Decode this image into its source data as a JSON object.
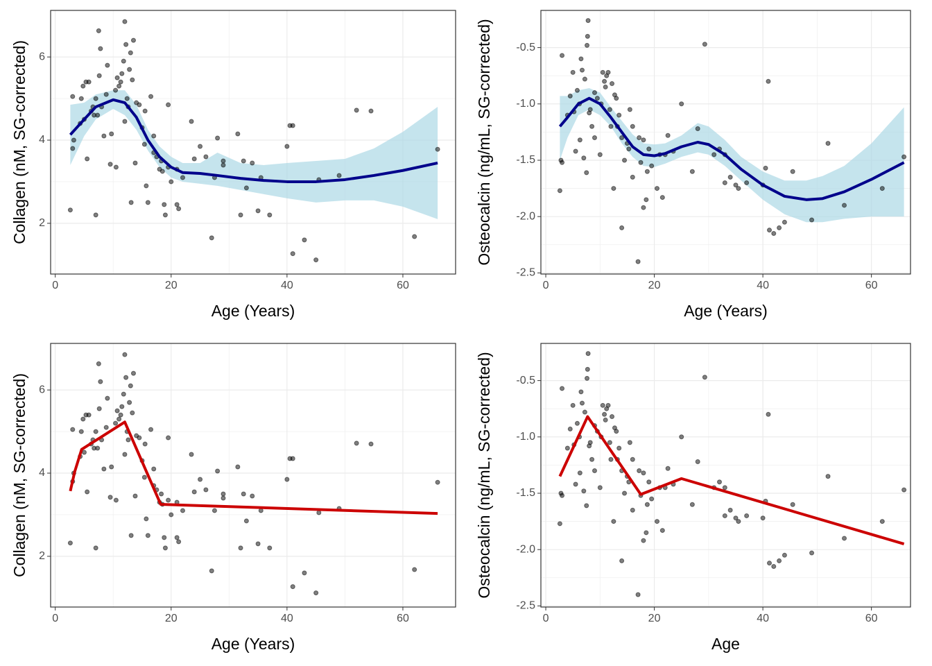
{
  "chart_data": [
    {
      "type": "scatter",
      "x_label": "Age (Years)",
      "y_label": "Collagen (nM, SG-corrected)",
      "xlim": [
        -0.8,
        69.1
      ],
      "ylim": [
        0.78,
        7.12
      ],
      "xticks": [
        0,
        20,
        40,
        60
      ],
      "yticks": [
        2,
        4,
        6
      ],
      "grid": true,
      "series": [
        {
          "kind": "points",
          "color": "#000000",
          "opacity": 0.5,
          "x": [
            2.6,
            3,
            3,
            3.2,
            4.3,
            4.5,
            4.8,
            5,
            5.3,
            5.5,
            5.8,
            6.2,
            6.5,
            6.7,
            7,
            7,
            7.3,
            7.5,
            7.6,
            7.8,
            8,
            8.4,
            8.8,
            9,
            9.5,
            9.7,
            10.4,
            10.5,
            10.7,
            11,
            11.3,
            11.5,
            11.8,
            12,
            12,
            12.2,
            12.4,
            12.6,
            12.8,
            13,
            13.1,
            13.3,
            13.5,
            13.8,
            14,
            14.5,
            15,
            15.4,
            15.5,
            15.7,
            16,
            16.5,
            17,
            17,
            17.5,
            18,
            18.3,
            18.5,
            18.8,
            19,
            19.5,
            19.5,
            20,
            21,
            21,
            21.3,
            22,
            23.5,
            24,
            25,
            26,
            27,
            27.5,
            28,
            29,
            29,
            31.5,
            32,
            32.5,
            33,
            34,
            35,
            35.5,
            37,
            40,
            40.5,
            41,
            41,
            43,
            45,
            45.5,
            49,
            52,
            54.5,
            62,
            66
          ],
          "y": [
            2.32,
            3.8,
            5.05,
            4.0,
            4.4,
            5.0,
            5.3,
            4.5,
            5.4,
            3.55,
            5.4,
            4.7,
            4.8,
            4.6,
            5.0,
            2.2,
            4.6,
            6.63,
            5.55,
            6.2,
            4.8,
            4.1,
            5.1,
            5.8,
            3.42,
            4.15,
            5.2,
            3.35,
            5.5,
            5.3,
            5.4,
            5.6,
            5.9,
            6.85,
            4.45,
            6.3,
            5.0,
            4.8,
            5.7,
            6.1,
            2.5,
            5.45,
            6.4,
            3.45,
            4.9,
            4.85,
            4.3,
            3.9,
            4.7,
            2.9,
            2.5,
            5.05,
            3.7,
            4.1,
            3.6,
            3.3,
            3.5,
            3.25,
            2.45,
            2.2,
            4.85,
            3.35,
            3.0,
            2.45,
            3.3,
            2.35,
            3.1,
            4.45,
            3.55,
            3.85,
            3.6,
            1.65,
            3.1,
            4.05,
            3.4,
            3.5,
            4.15,
            2.2,
            3.5,
            2.85,
            3.45,
            2.3,
            3.1,
            2.2,
            3.85,
            4.35,
            4.35,
            1.27,
            1.6,
            1.12,
            3.05,
            3.15,
            4.72,
            4.7,
            1.68,
            3.78
          ]
        },
        {
          "kind": "smooth",
          "color": "#00008b",
          "fill": "#add8e6",
          "x": [
            2.6,
            5,
            7,
            10,
            12,
            14,
            16,
            18,
            20,
            22,
            25,
            28,
            32,
            36,
            40,
            45,
            50,
            55,
            60,
            66
          ],
          "y": [
            4.13,
            4.5,
            4.8,
            4.97,
            4.9,
            4.55,
            4.0,
            3.6,
            3.35,
            3.22,
            3.2,
            3.15,
            3.08,
            3.03,
            3.0,
            3.0,
            3.05,
            3.15,
            3.27,
            3.45
          ],
          "lower": [
            3.4,
            4.1,
            4.5,
            4.75,
            4.6,
            4.25,
            3.75,
            3.35,
            3.1,
            3.0,
            2.95,
            2.9,
            2.8,
            2.7,
            2.6,
            2.5,
            2.55,
            2.55,
            2.4,
            2.1
          ],
          "upper": [
            4.85,
            4.9,
            5.1,
            5.2,
            5.2,
            4.85,
            4.25,
            3.85,
            3.6,
            3.45,
            3.45,
            3.7,
            3.45,
            3.4,
            3.45,
            3.5,
            3.55,
            3.8,
            4.2,
            4.8
          ]
        }
      ]
    },
    {
      "type": "scatter",
      "x_label": "Age (Years)",
      "y_label": "Osteocalcin (ng/mL, SG-corrected)",
      "xlim": [
        -0.9,
        67.2
      ],
      "ylim": [
        -2.51,
        -0.17
      ],
      "xticks": [
        0,
        20,
        40,
        60
      ],
      "yticks": [
        -0.5,
        {
          "value": -1,
          "label": "-1.0"
        },
        -1.5,
        {
          "value": -2,
          "label": "-2.0"
        },
        -2.5
      ],
      "grid": true,
      "series": [
        {
          "kind": "points",
          "color": "#000000",
          "opacity": 0.5,
          "x": [
            2.6,
            2.8,
            3,
            3,
            4,
            4.5,
            5,
            5.2,
            5.5,
            5.8,
            6.2,
            6.3,
            6.5,
            6.7,
            7,
            7.2,
            7.5,
            7.6,
            7.7,
            7.8,
            8,
            8.2,
            8.5,
            9,
            9,
            9.5,
            10,
            10.2,
            10.5,
            10.8,
            11,
            11.2,
            11.5,
            11.8,
            12,
            12.2,
            12.5,
            12.7,
            13,
            13.2,
            13.5,
            14,
            14,
            14.5,
            15,
            15.3,
            15.5,
            16,
            16,
            17,
            17.2,
            17.5,
            18,
            18,
            18.5,
            18.7,
            19,
            19.5,
            20.5,
            21,
            21.5,
            22,
            22.5,
            23.5,
            25,
            27,
            28,
            29.3,
            31,
            32,
            33,
            33,
            34,
            35,
            35.5,
            37,
            40,
            40.5,
            41,
            41.2,
            42,
            43,
            44,
            45.5,
            49,
            52,
            55,
            62,
            66
          ],
          "y": [
            -1.77,
            -1.5,
            -1.52,
            -0.57,
            -1.1,
            -0.93,
            -0.72,
            -1.07,
            -1.42,
            -0.88,
            -1.0,
            -1.32,
            -0.6,
            -0.7,
            -1.48,
            -0.78,
            -1.61,
            -0.48,
            -0.4,
            -0.26,
            -1.08,
            -1.05,
            -1.2,
            -1.3,
            -0.9,
            -0.95,
            -1.45,
            -1.0,
            -0.72,
            -0.8,
            -0.85,
            -0.75,
            -0.72,
            -1.05,
            -1.2,
            -0.82,
            -1.75,
            -0.92,
            -0.95,
            -1.2,
            -1.1,
            -1.3,
            -2.1,
            -1.5,
            -1.35,
            -1.4,
            -1.05,
            -1.65,
            -1.2,
            -2.4,
            -1.3,
            -1.52,
            -1.32,
            -1.92,
            -1.85,
            -1.6,
            -1.4,
            -1.55,
            -1.75,
            -1.45,
            -1.83,
            -1.45,
            -1.28,
            -1.42,
            -1.0,
            -1.6,
            -1.22,
            -0.47,
            -1.45,
            -1.4,
            -1.45,
            -1.7,
            -1.65,
            -1.72,
            -1.75,
            -1.7,
            -1.72,
            -1.57,
            -0.8,
            -2.12,
            -2.15,
            -2.1,
            -2.05,
            -1.6,
            -2.03,
            -1.35,
            -1.9,
            -1.75,
            -1.47
          ]
        },
        {
          "kind": "smooth",
          "color": "#00008b",
          "fill": "#add8e6",
          "x": [
            2.6,
            4,
            6,
            8,
            10,
            12,
            14,
            16,
            18,
            20,
            22,
            25,
            28,
            30,
            33,
            36,
            40,
            44,
            48,
            51,
            55,
            60,
            66
          ],
          "y": [
            -1.2,
            -1.12,
            -1.0,
            -0.95,
            -1.0,
            -1.12,
            -1.25,
            -1.38,
            -1.45,
            -1.46,
            -1.44,
            -1.38,
            -1.34,
            -1.36,
            -1.45,
            -1.58,
            -1.72,
            -1.82,
            -1.85,
            -1.84,
            -1.78,
            -1.67,
            -1.52
          ],
          "lower": [
            -1.5,
            -1.3,
            -1.1,
            -1.05,
            -1.1,
            -1.2,
            -1.35,
            -1.47,
            -1.55,
            -1.56,
            -1.53,
            -1.47,
            -1.43,
            -1.45,
            -1.55,
            -1.68,
            -1.85,
            -1.98,
            -2.05,
            -2.05,
            -2.02,
            -2.0,
            -2.0
          ],
          "upper": [
            -0.93,
            -0.93,
            -0.88,
            -0.86,
            -0.9,
            -1.03,
            -1.15,
            -1.27,
            -1.35,
            -1.36,
            -1.35,
            -1.28,
            -1.17,
            -1.2,
            -1.32,
            -1.47,
            -1.6,
            -1.68,
            -1.68,
            -1.64,
            -1.55,
            -1.35,
            -1.03
          ]
        }
      ]
    },
    {
      "type": "scatter",
      "x_label": "Age (Years)",
      "y_label": "Collagen (nM, SG-corrected)",
      "xlim": [
        -0.8,
        69.1
      ],
      "ylim": [
        0.78,
        7.12
      ],
      "xticks": [
        0,
        20,
        40,
        60
      ],
      "yticks": [
        2,
        4,
        6
      ],
      "grid": true,
      "series": [
        {
          "kind": "points",
          "color": "#000000",
          "opacity": 0.5,
          "x": [
            2.6,
            3,
            3,
            3.2,
            4.3,
            4.5,
            4.8,
            5,
            5.3,
            5.5,
            5.8,
            6.2,
            6.5,
            6.7,
            7,
            7,
            7.3,
            7.5,
            7.6,
            7.8,
            8,
            8.4,
            8.8,
            9,
            9.5,
            9.7,
            10.4,
            10.5,
            10.7,
            11,
            11.3,
            11.5,
            11.8,
            12,
            12,
            12.2,
            12.4,
            12.6,
            12.8,
            13,
            13.1,
            13.3,
            13.5,
            13.8,
            14,
            14.5,
            15,
            15.4,
            15.5,
            15.7,
            16,
            16.5,
            17,
            17,
            17.5,
            18,
            18.3,
            18.5,
            18.8,
            19,
            19.5,
            19.5,
            20,
            21,
            21,
            21.3,
            22,
            23.5,
            24,
            25,
            26,
            27,
            27.5,
            28,
            29,
            29,
            31.5,
            32,
            32.5,
            33,
            34,
            35,
            35.5,
            37,
            40,
            40.5,
            41,
            41,
            43,
            45,
            45.5,
            49,
            52,
            54.5,
            62,
            66
          ],
          "y": [
            2.32,
            3.8,
            5.05,
            4.0,
            4.4,
            5.0,
            5.3,
            4.5,
            5.4,
            3.55,
            5.4,
            4.7,
            4.8,
            4.6,
            5.0,
            2.2,
            4.6,
            6.63,
            5.55,
            6.2,
            4.8,
            4.1,
            5.1,
            5.8,
            3.42,
            4.15,
            5.2,
            3.35,
            5.5,
            5.3,
            5.4,
            5.6,
            5.9,
            6.85,
            4.45,
            6.3,
            5.0,
            4.8,
            5.7,
            6.1,
            2.5,
            5.45,
            6.4,
            3.45,
            4.9,
            4.85,
            4.3,
            3.9,
            4.7,
            2.9,
            2.5,
            5.05,
            3.7,
            4.1,
            3.6,
            3.3,
            3.5,
            3.25,
            2.45,
            2.2,
            4.85,
            3.35,
            3.0,
            2.45,
            3.3,
            2.35,
            3.1,
            4.45,
            3.55,
            3.85,
            3.6,
            1.65,
            3.1,
            4.05,
            3.4,
            3.5,
            4.15,
            2.2,
            3.5,
            2.85,
            3.45,
            2.3,
            3.1,
            2.2,
            3.85,
            4.35,
            4.35,
            1.27,
            1.6,
            1.12,
            3.05,
            3.15,
            4.72,
            4.7,
            1.68,
            3.78
          ]
        },
        {
          "kind": "line",
          "color": "#cc0000",
          "x": [
            2.6,
            3.35,
            4.55,
            12,
            18.2,
            66
          ],
          "y": [
            3.57,
            4.03,
            4.57,
            5.23,
            3.25,
            3.03
          ]
        }
      ]
    },
    {
      "type": "scatter",
      "x_label": "Age",
      "y_label": "Osteocalcin (ng/mL, SG-corrected)",
      "xlim": [
        -0.9,
        67.2
      ],
      "ylim": [
        -2.51,
        -0.17
      ],
      "xticks": [
        0,
        20,
        40,
        60
      ],
      "yticks": [
        -0.5,
        {
          "value": -1,
          "label": "-1.0"
        },
        -1.5,
        {
          "value": -2,
          "label": "-2.0"
        },
        -2.5
      ],
      "grid": true,
      "series": [
        {
          "kind": "points",
          "color": "#000000",
          "opacity": 0.5,
          "x": [
            2.6,
            2.8,
            3,
            3,
            4,
            4.5,
            5,
            5.2,
            5.5,
            5.8,
            6.2,
            6.3,
            6.5,
            6.7,
            7,
            7.2,
            7.5,
            7.6,
            7.7,
            7.8,
            8,
            8.2,
            8.5,
            9,
            9,
            9.5,
            10,
            10.2,
            10.5,
            10.8,
            11,
            11.2,
            11.5,
            11.8,
            12,
            12.2,
            12.5,
            12.7,
            13,
            13.2,
            13.5,
            14,
            14,
            14.5,
            15,
            15.3,
            15.5,
            16,
            16,
            17,
            17.2,
            17.5,
            18,
            18,
            18.5,
            18.7,
            19,
            19.5,
            20.5,
            21,
            21.5,
            22,
            22.5,
            23.5,
            25,
            27,
            28,
            29.3,
            31,
            32,
            33,
            33,
            34,
            35,
            35.5,
            37,
            40,
            40.5,
            41,
            41.2,
            42,
            43,
            44,
            45.5,
            49,
            52,
            55,
            62,
            66
          ],
          "y": [
            -1.77,
            -1.5,
            -1.52,
            -0.57,
            -1.1,
            -0.93,
            -0.72,
            -1.07,
            -1.42,
            -0.88,
            -1.0,
            -1.32,
            -0.6,
            -0.7,
            -1.48,
            -0.78,
            -1.61,
            -0.48,
            -0.4,
            -0.26,
            -1.08,
            -1.05,
            -1.2,
            -1.3,
            -0.9,
            -0.95,
            -1.45,
            -1.0,
            -0.72,
            -0.8,
            -0.85,
            -0.75,
            -0.72,
            -1.05,
            -1.2,
            -0.82,
            -1.75,
            -0.92,
            -0.95,
            -1.2,
            -1.1,
            -1.3,
            -2.1,
            -1.5,
            -1.35,
            -1.4,
            -1.05,
            -1.65,
            -1.2,
            -2.4,
            -1.3,
            -1.52,
            -1.32,
            -1.92,
            -1.85,
            -1.6,
            -1.4,
            -1.55,
            -1.75,
            -1.45,
            -1.83,
            -1.45,
            -1.28,
            -1.42,
            -1.0,
            -1.6,
            -1.22,
            -0.47,
            -1.45,
            -1.4,
            -1.45,
            -1.7,
            -1.65,
            -1.72,
            -1.75,
            -1.7,
            -1.72,
            -1.57,
            -0.8,
            -2.12,
            -2.15,
            -2.1,
            -2.05,
            -1.6,
            -2.03,
            -1.35,
            -1.9,
            -1.75,
            -1.47
          ]
        },
        {
          "kind": "line",
          "color": "#cc0000",
          "x": [
            2.6,
            7.7,
            17.5,
            25,
            66
          ],
          "y": [
            -1.35,
            -0.82,
            -1.51,
            -1.37,
            -1.95
          ]
        }
      ]
    }
  ]
}
